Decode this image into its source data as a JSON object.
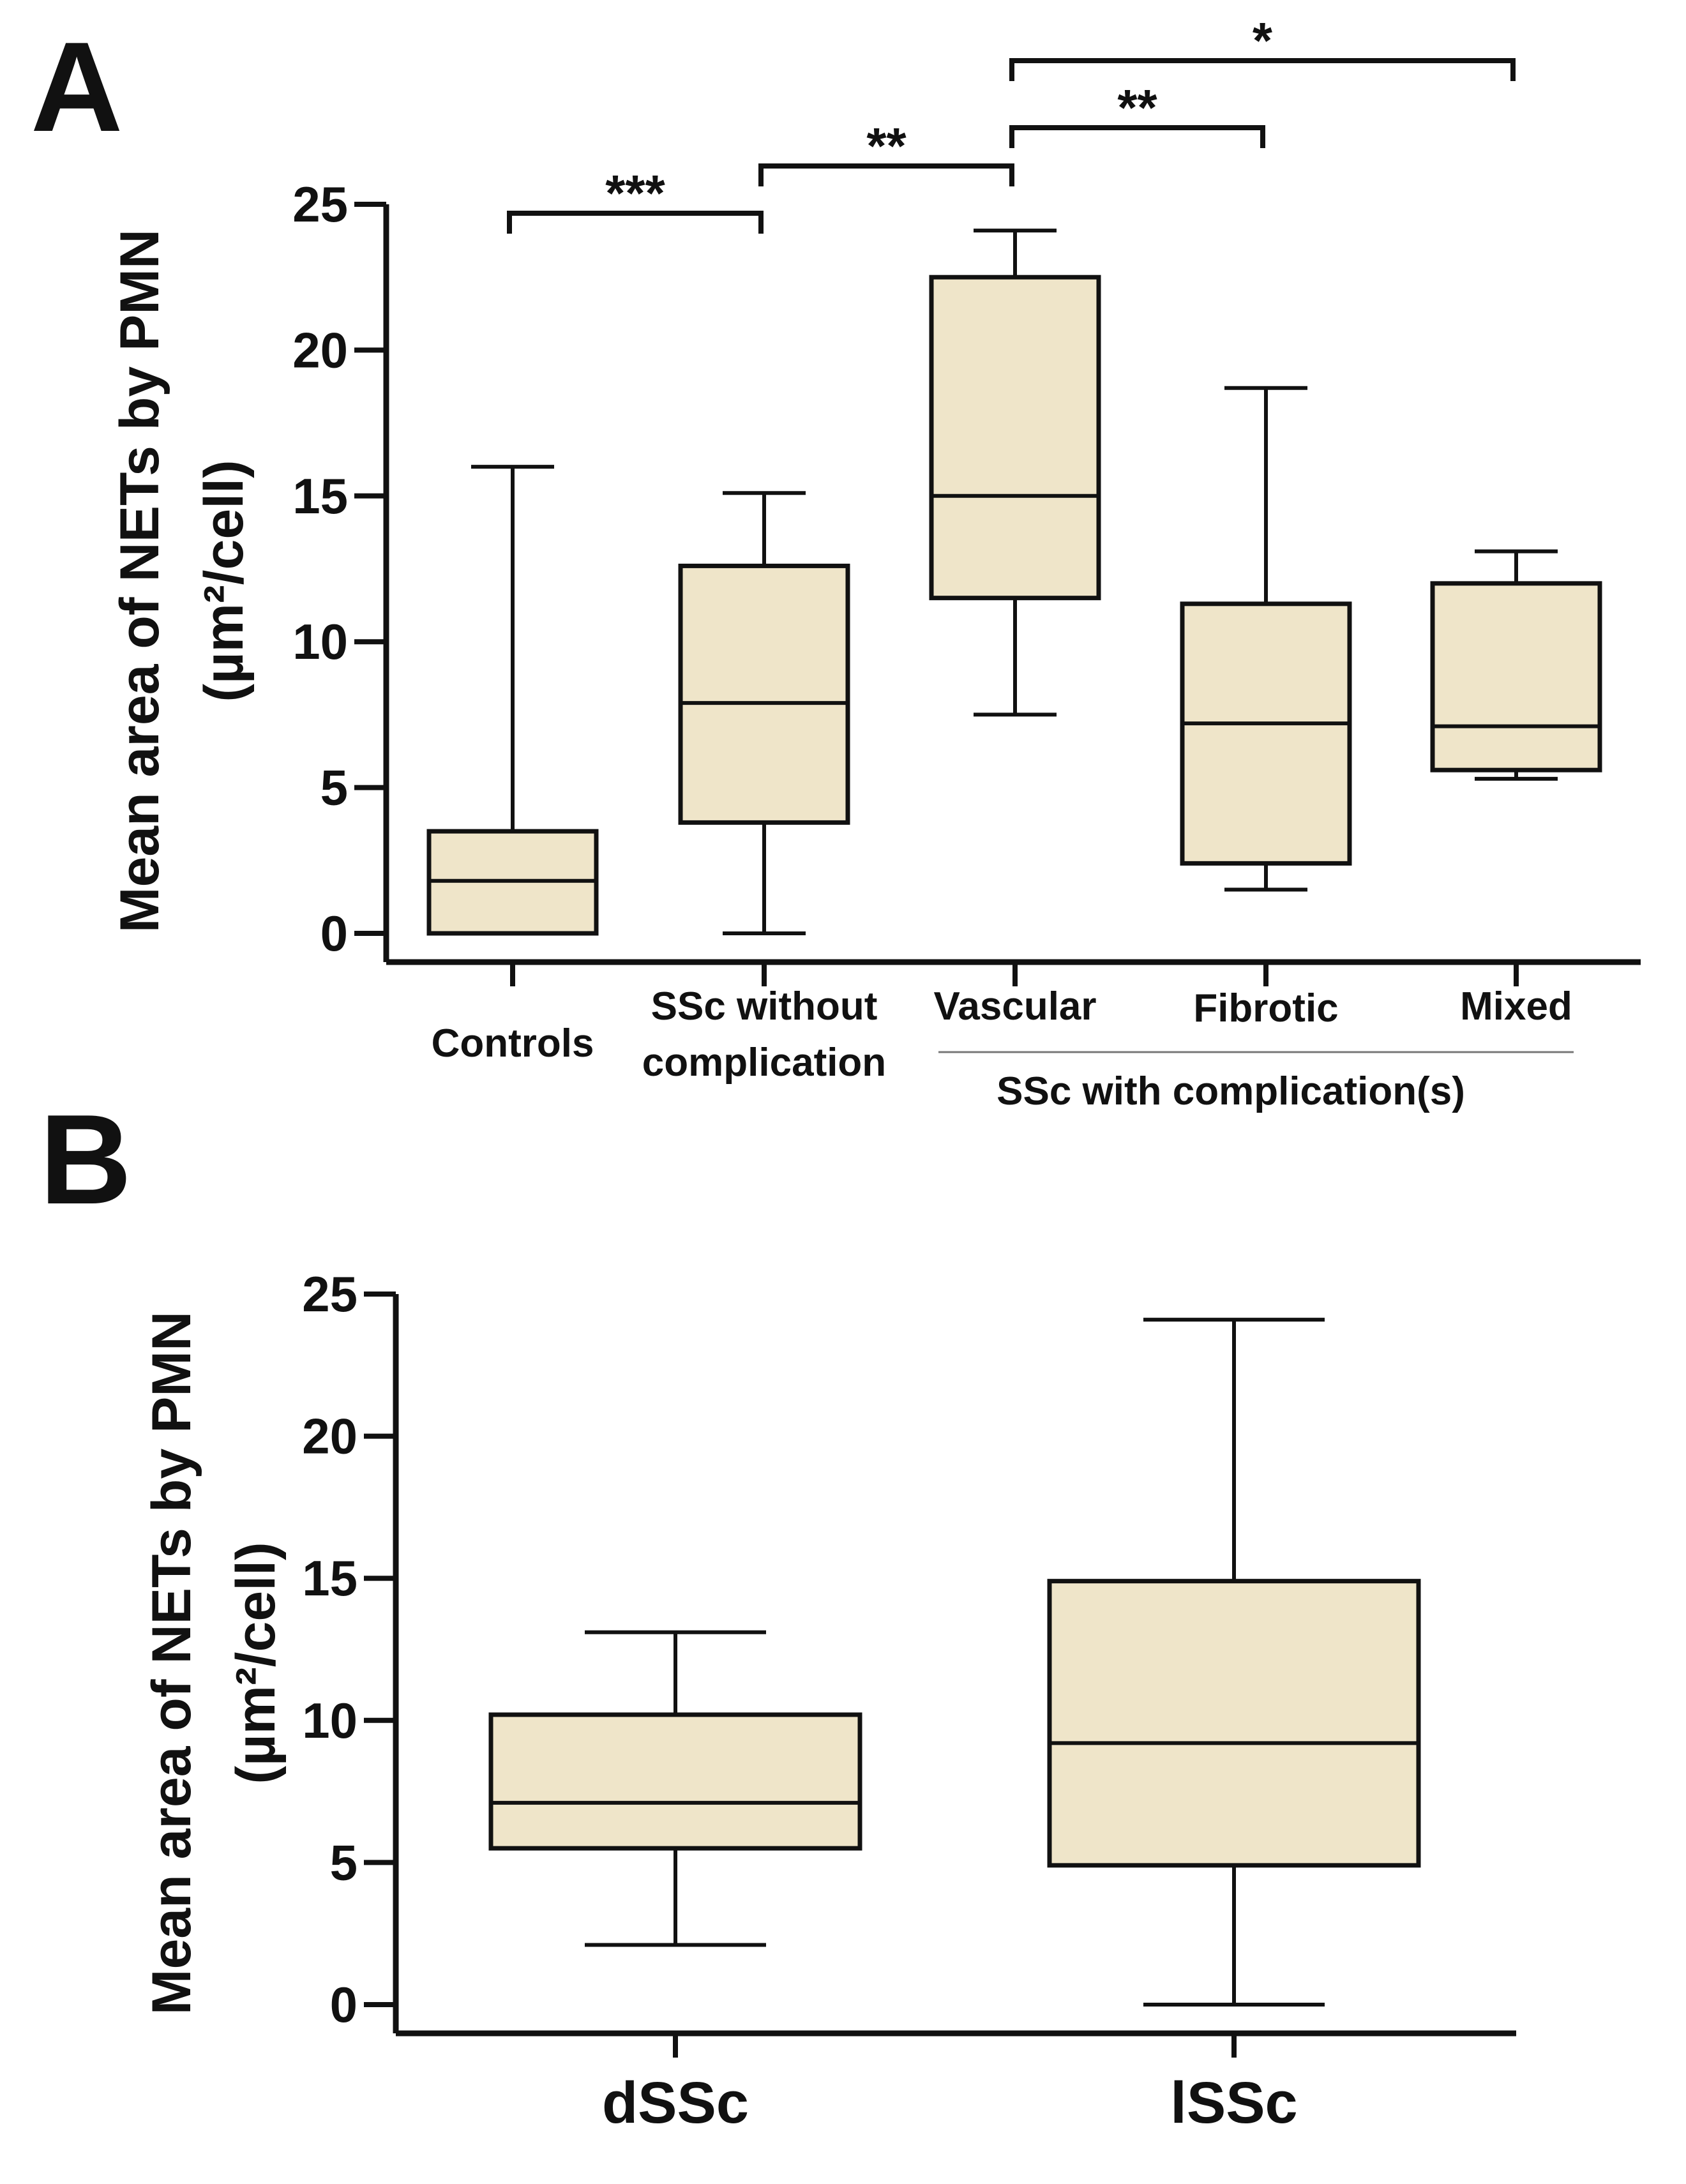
{
  "chart_data": [
    {
      "type": "box",
      "panel_label": "A",
      "ylabel_line1": "Mean area of NETs by PMN",
      "ylabel_line2": "(µm²/cell)",
      "ylim": [
        0,
        25
      ],
      "yticks": [
        0,
        5,
        10,
        15,
        20,
        25
      ],
      "categories": [
        {
          "line1": "Controls",
          "line2": ""
        },
        {
          "line1": "SSc without",
          "line2": "complication"
        },
        {
          "line1": "Vascular",
          "line2": ""
        },
        {
          "line1": "Fibrotic",
          "line2": ""
        },
        {
          "line1": "Mixed",
          "line2": ""
        }
      ],
      "group_label": "SSc with complication(s)",
      "group_span": [
        2,
        4
      ],
      "boxes": [
        {
          "min": 0,
          "q1": 0,
          "median": 1.8,
          "q3": 3.5,
          "max": 16.0
        },
        {
          "min": 0,
          "q1": 3.8,
          "median": 7.9,
          "q3": 12.6,
          "max": 15.1
        },
        {
          "min": 7.5,
          "q1": 11.5,
          "median": 15.0,
          "q3": 22.5,
          "max": 24.1
        },
        {
          "min": 1.5,
          "q1": 2.4,
          "median": 7.2,
          "q3": 11.3,
          "max": 18.7
        },
        {
          "min": 5.3,
          "q1": 5.6,
          "median": 7.1,
          "q3": 12.0,
          "max": 13.1
        }
      ],
      "significance": [
        {
          "from": 0,
          "to": 1,
          "label": "***"
        },
        {
          "from": 1,
          "to": 2,
          "label": "**"
        },
        {
          "from": 2,
          "to": 3,
          "label": "**"
        },
        {
          "from": 2,
          "to": 4,
          "label": "*"
        }
      ]
    },
    {
      "type": "box",
      "panel_label": "B",
      "ylabel_line1": "Mean area of NETs by PMN",
      "ylabel_line2": "(µm²/cell)",
      "ylim": [
        0,
        25
      ],
      "yticks": [
        0,
        5,
        10,
        15,
        20,
        25
      ],
      "categories": [
        "dSSc",
        "lSSc"
      ],
      "boxes": [
        {
          "min": 2.1,
          "q1": 5.5,
          "median": 7.1,
          "q3": 10.2,
          "max": 13.1
        },
        {
          "min": 0,
          "q1": 4.9,
          "median": 9.2,
          "q3": 14.9,
          "max": 24.1
        }
      ]
    }
  ]
}
